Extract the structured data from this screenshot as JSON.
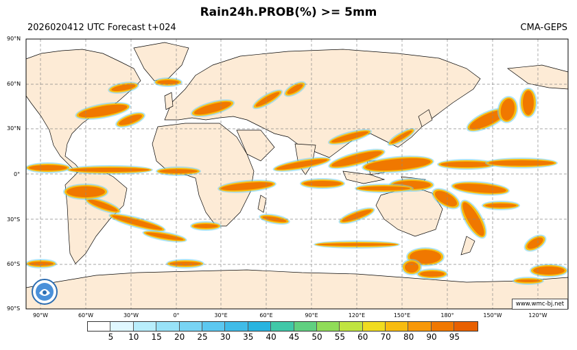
{
  "header": {
    "title": "Rain24h.PROB(%) >= 5mm",
    "run_info": "2026020412 UTC Forecast t+024",
    "source": "CMA-GEPS"
  },
  "map": {
    "lat_labels": [
      "90°N",
      "60°N",
      "30°N",
      "0°",
      "30°S",
      "60°S",
      "90°S"
    ],
    "lon_labels": [
      "90°W",
      "60°W",
      "30°W",
      "0°",
      "30°E",
      "60°E",
      "90°E",
      "120°E",
      "150°E",
      "180°",
      "150°W",
      "120°W"
    ],
    "website": "www.wmc-bj.net",
    "colors": {
      "ocean": "#ffffff",
      "land": "#fdebd6",
      "grid": "#888888",
      "coast": "#000000"
    }
  },
  "colorbar": {
    "labels": [
      "5",
      "10",
      "15",
      "20",
      "25",
      "30",
      "35",
      "40",
      "45",
      "50",
      "55",
      "60",
      "70",
      "80",
      "90",
      "95"
    ],
    "colors": [
      "#ffffff",
      "#e0f8ff",
      "#b8eefc",
      "#98e2f8",
      "#78d4f4",
      "#5cc8f0",
      "#40bce8",
      "#28b4e0",
      "#40c8a8",
      "#60d080",
      "#90dc58",
      "#c0e440",
      "#f0dc20",
      "#f8bc10",
      "#f89808",
      "#f07800",
      "#e86000"
    ]
  }
}
